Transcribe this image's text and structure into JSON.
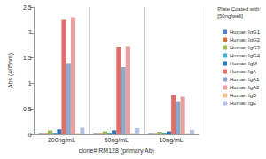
{
  "chart_data": {
    "type": "bar",
    "x_label": "clone# RM128 (primary Ab)",
    "y_label": "Abs (405nm)",
    "legend_title": [
      "Plate Coated with:",
      "[50ng/well]"
    ],
    "categories": [
      "200ng/mL",
      "50ng/mL",
      "10ng/mL"
    ],
    "series": [
      {
        "name": "Human IgG1",
        "color": "#4f81bd",
        "values": [
          0.01,
          0.01,
          0.01
        ]
      },
      {
        "name": "Human IgG2",
        "color": "#d0733a",
        "values": [
          0.01,
          0.01,
          0.01
        ]
      },
      {
        "name": "Human IgG3",
        "color": "#9bbb59",
        "values": [
          0.08,
          0.06,
          0.05
        ]
      },
      {
        "name": "Human IgG4",
        "color": "#4bacc6",
        "values": [
          0.02,
          0.02,
          0.02
        ]
      },
      {
        "name": "Human IgM",
        "color": "#2e75b6",
        "values": [
          0.1,
          0.08,
          0.06
        ]
      },
      {
        "name": "Human IgA",
        "color": "#e06c6c",
        "values": [
          2.25,
          1.72,
          0.77
        ]
      },
      {
        "name": "Human IgA1",
        "color": "#8ea9c8",
        "values": [
          1.4,
          1.32,
          0.65
        ]
      },
      {
        "name": "Human IgA2",
        "color": "#e8a0a0",
        "values": [
          2.3,
          1.73,
          0.74
        ]
      },
      {
        "name": "Human IgD",
        "color": "#f4c28c",
        "values": [
          0.01,
          0.01,
          0.01
        ]
      },
      {
        "name": "Human IgE",
        "color": "#b8c4e0",
        "values": [
          0.13,
          0.12,
          0.09
        ]
      }
    ],
    "ylim": [
      0,
      2.5
    ],
    "yticks": [
      0,
      0.5,
      1,
      1.5,
      2,
      2.5
    ],
    "grid": false,
    "legend": "right"
  }
}
